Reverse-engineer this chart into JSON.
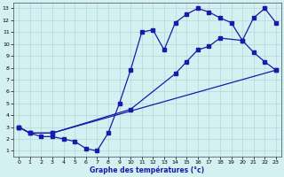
{
  "xlabel": "Graphe des températures (°c)",
  "xlim": [
    -0.5,
    23.5
  ],
  "ylim": [
    0.5,
    13.5
  ],
  "xticks": [
    0,
    1,
    2,
    3,
    4,
    5,
    6,
    7,
    8,
    9,
    10,
    11,
    12,
    13,
    14,
    15,
    16,
    17,
    18,
    19,
    20,
    21,
    22,
    23
  ],
  "yticks": [
    1,
    2,
    3,
    4,
    5,
    6,
    7,
    8,
    9,
    10,
    11,
    12,
    13
  ],
  "background_color": "#d4f0f0",
  "grid_color": "#b0d8d8",
  "line_color": "#1a1aaa",
  "line1_x": [
    0,
    1,
    2,
    3,
    4,
    5,
    6,
    7,
    8,
    9,
    10,
    11,
    12,
    13,
    14,
    15,
    16,
    17,
    18,
    19,
    20,
    21,
    22,
    23
  ],
  "line1_y": [
    3.0,
    2.5,
    2.2,
    2.2,
    2.0,
    1.8,
    1.2,
    1.0,
    2.5,
    5.0,
    7.8,
    11.0,
    11.2,
    9.5,
    11.8,
    12.5,
    13.0,
    12.7,
    12.2,
    11.8,
    10.3,
    9.3,
    8.5,
    7.8
  ],
  "line2_x": [
    0,
    1,
    3,
    10,
    14,
    15,
    16,
    17,
    18,
    20,
    21,
    22,
    23
  ],
  "line2_y": [
    3.0,
    2.5,
    2.5,
    4.5,
    7.5,
    8.5,
    9.5,
    9.8,
    10.5,
    10.3,
    12.2,
    13.0,
    11.8
  ],
  "line3_x": [
    0,
    1,
    3,
    23
  ],
  "line3_y": [
    3.0,
    2.5,
    2.5,
    7.8
  ]
}
